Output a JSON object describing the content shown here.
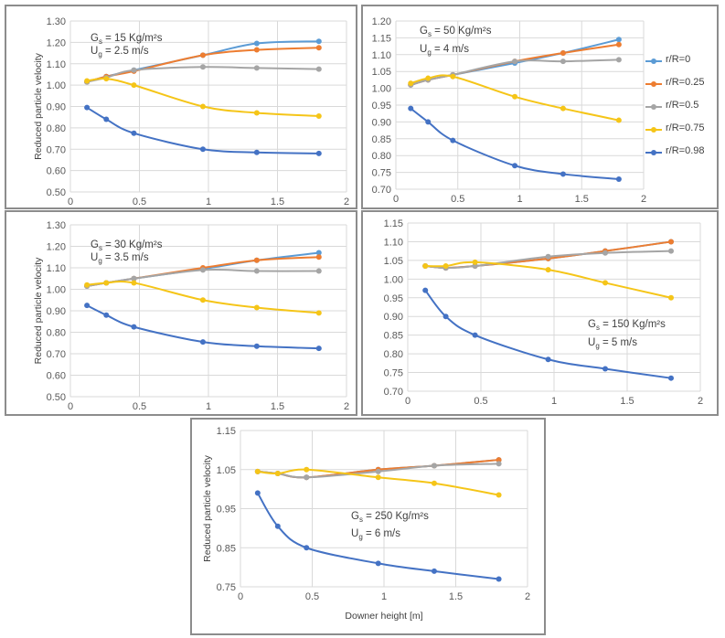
{
  "legend": [
    {
      "name": "r/R=0",
      "color": "#5b9bd5"
    },
    {
      "name": "r/R=0.25",
      "color": "#ed7d31"
    },
    {
      "name": "r/R=0.5",
      "color": "#a5a5a5"
    },
    {
      "name": "r/R=0.75",
      "color": "#f5c518"
    },
    {
      "name": "r/R=0.98",
      "color": "#4472c4"
    }
  ],
  "chart_data": [
    {
      "type": "line",
      "ylabel": "Reduced particle velocity",
      "xlabel": "",
      "xlim": [
        0,
        2
      ],
      "ylim": [
        0.5,
        1.3
      ],
      "xticks": [
        "0",
        "0.5",
        "1",
        "1.5",
        "2"
      ],
      "yticks": [
        "0.50",
        "0.60",
        "0.70",
        "0.80",
        "0.90",
        "1.00",
        "1.10",
        "1.20",
        "1.30"
      ],
      "annotation": {
        "gs_label": "G",
        "gs_sub": "s",
        "gs_value": "= 15 Kg/m²s",
        "ug_label": "U",
        "ug_sub": "g",
        "ug_value": "= 2.5 m/s"
      },
      "x": [
        0.12,
        0.26,
        0.46,
        0.96,
        1.35,
        1.8
      ],
      "series": [
        {
          "name": "r/R=0",
          "values": [
            1.015,
            1.04,
            1.07,
            1.14,
            1.195,
            1.205
          ]
        },
        {
          "name": "r/R=0.25",
          "values": [
            1.015,
            1.04,
            1.065,
            1.14,
            1.165,
            1.175
          ]
        },
        {
          "name": "r/R=0.5",
          "values": [
            1.015,
            1.035,
            1.07,
            1.085,
            1.08,
            1.075
          ]
        },
        {
          "name": "r/R=0.75",
          "values": [
            1.02,
            1.03,
            1.0,
            0.9,
            0.87,
            0.855
          ]
        },
        {
          "name": "r/R=0.98",
          "values": [
            0.895,
            0.84,
            0.775,
            0.7,
            0.685,
            0.68
          ]
        }
      ]
    },
    {
      "type": "line",
      "ylabel": "",
      "xlabel": "",
      "xlim": [
        0,
        2
      ],
      "ylim": [
        0.7,
        1.2
      ],
      "xticks": [
        "0",
        "0.5",
        "1",
        "1.5",
        "2"
      ],
      "yticks": [
        "0.70",
        "0.75",
        "0.80",
        "0.85",
        "0.90",
        "0.95",
        "1.00",
        "1.05",
        "1.10",
        "1.15",
        "1.20"
      ],
      "annotation": {
        "gs_label": "G",
        "gs_sub": "s",
        "gs_value": "= 50 Kg/m²s",
        "ug_label": "U",
        "ug_sub": "g",
        "ug_value": "= 4 m/s"
      },
      "x": [
        0.12,
        0.26,
        0.46,
        0.96,
        1.35,
        1.8
      ],
      "series": [
        {
          "name": "r/R=0",
          "values": [
            1.01,
            1.025,
            1.04,
            1.075,
            1.105,
            1.145
          ]
        },
        {
          "name": "r/R=0.25",
          "values": [
            1.01,
            1.025,
            1.04,
            1.08,
            1.105,
            1.13
          ]
        },
        {
          "name": "r/R=0.5",
          "values": [
            1.01,
            1.025,
            1.04,
            1.08,
            1.08,
            1.085
          ]
        },
        {
          "name": "r/R=0.75",
          "values": [
            1.015,
            1.03,
            1.035,
            0.975,
            0.94,
            0.905
          ]
        },
        {
          "name": "r/R=0.98",
          "values": [
            0.94,
            0.9,
            0.845,
            0.77,
            0.745,
            0.73
          ]
        }
      ]
    },
    {
      "type": "line",
      "ylabel": "Reduced particle velocity",
      "xlabel": "",
      "xlim": [
        0,
        2
      ],
      "ylim": [
        0.5,
        1.3
      ],
      "xticks": [
        "0",
        "0.5",
        "1",
        "1.5",
        "2"
      ],
      "yticks": [
        "0.50",
        "0.60",
        "0.70",
        "0.80",
        "0.90",
        "1.00",
        "1.10",
        "1.20",
        "1.30"
      ],
      "annotation": {
        "gs_label": "G",
        "gs_sub": "s",
        "gs_value": "= 30 Kg/m²s",
        "ug_label": "U",
        "ug_sub": "g",
        "ug_value": "= 3.5 m/s"
      },
      "x": [
        0.12,
        0.26,
        0.46,
        0.96,
        1.35,
        1.8
      ],
      "series": [
        {
          "name": "r/R=0",
          "values": [
            1.015,
            1.03,
            1.05,
            1.095,
            1.135,
            1.17
          ]
        },
        {
          "name": "r/R=0.25",
          "values": [
            1.015,
            1.03,
            1.05,
            1.1,
            1.135,
            1.15
          ]
        },
        {
          "name": "r/R=0.5",
          "values": [
            1.015,
            1.03,
            1.05,
            1.09,
            1.085,
            1.085
          ]
        },
        {
          "name": "r/R=0.75",
          "values": [
            1.02,
            1.03,
            1.03,
            0.95,
            0.915,
            0.89
          ]
        },
        {
          "name": "r/R=0.98",
          "values": [
            0.925,
            0.88,
            0.825,
            0.755,
            0.735,
            0.725
          ]
        }
      ]
    },
    {
      "type": "line",
      "ylabel": "",
      "xlabel": "",
      "xlim": [
        0,
        2
      ],
      "ylim": [
        0.7,
        1.15
      ],
      "xticks": [
        "0",
        "0.5",
        "1",
        "1.5",
        "2"
      ],
      "yticks": [
        "0.70",
        "0.75",
        "0.80",
        "0.85",
        "0.90",
        "0.95",
        "1.00",
        "1.05",
        "1.10",
        "1.15"
      ],
      "annotation": {
        "gs_label": "G",
        "gs_sub": "s",
        "gs_value": "= 150 Kg/m²s",
        "ug_label": "U",
        "ug_sub": "g",
        "ug_value": "= 5 m/s"
      },
      "x": [
        0.12,
        0.26,
        0.46,
        0.96,
        1.35,
        1.8
      ],
      "series": [
        {
          "name": "r/R=0",
          "values": [
            1.035,
            1.03,
            1.035,
            1.055,
            1.075,
            1.1
          ]
        },
        {
          "name": "r/R=0.25",
          "values": [
            1.035,
            1.03,
            1.035,
            1.055,
            1.075,
            1.1
          ]
        },
        {
          "name": "r/R=0.5",
          "values": [
            1.035,
            1.03,
            1.035,
            1.06,
            1.07,
            1.075
          ]
        },
        {
          "name": "r/R=0.75",
          "values": [
            1.035,
            1.035,
            1.045,
            1.025,
            0.99,
            0.95
          ]
        },
        {
          "name": "r/R=0.98",
          "values": [
            0.97,
            0.9,
            0.85,
            0.785,
            0.76,
            0.735
          ]
        }
      ]
    },
    {
      "type": "line",
      "ylabel": "Reduced particle velocity",
      "xlabel": "Downer height [m]",
      "xlim": [
        0,
        2
      ],
      "ylim": [
        0.75,
        1.15
      ],
      "xticks": [
        "0",
        "0.5",
        "1",
        "1.5",
        "2"
      ],
      "yticks": [
        "0.75",
        "0.85",
        "0.95",
        "1.05",
        "1.15"
      ],
      "annotation": {
        "gs_label": "G",
        "gs_sub": "s",
        "gs_value": "= 250 Kg/m²s",
        "ug_label": "U",
        "ug_sub": "g",
        "ug_value": "= 6 m/s"
      },
      "x": [
        0.12,
        0.26,
        0.46,
        0.96,
        1.35,
        1.8
      ],
      "series": [
        {
          "name": "r/R=0",
          "values": [
            1.045,
            1.04,
            1.03,
            1.05,
            1.06,
            1.075
          ]
        },
        {
          "name": "r/R=0.25",
          "values": [
            1.045,
            1.04,
            1.03,
            1.05,
            1.06,
            1.075
          ]
        },
        {
          "name": "r/R=0.5",
          "values": [
            1.045,
            1.04,
            1.03,
            1.045,
            1.06,
            1.065
          ]
        },
        {
          "name": "r/R=0.75",
          "values": [
            1.045,
            1.04,
            1.05,
            1.03,
            1.015,
            0.985
          ]
        },
        {
          "name": "r/R=0.98",
          "values": [
            0.99,
            0.905,
            0.85,
            0.81,
            0.79,
            0.77
          ]
        }
      ]
    }
  ]
}
